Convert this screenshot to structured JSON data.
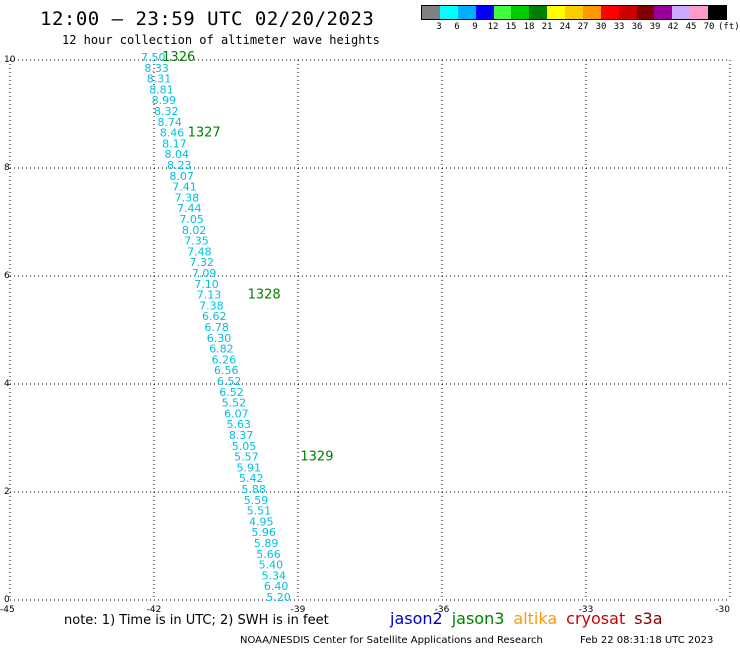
{
  "header": {
    "title": "12:00 – 23:59 UTC 02/20/2023",
    "subtitle": "12 hour collection of altimeter wave heights"
  },
  "legend": {
    "colors": [
      "#808080",
      "#00ffff",
      "#00b0ff",
      "#0000ff",
      "#40ff40",
      "#00cc00",
      "#008000",
      "#ffff00",
      "#ffcc00",
      "#ff9900",
      "#ff0000",
      "#cc0000",
      "#800000",
      "#990099",
      "#ccaaff",
      "#ff99cc",
      "#000000"
    ],
    "labels": [
      "3",
      "6",
      "9",
      "12",
      "15",
      "18",
      "21",
      "24",
      "27",
      "30",
      "33",
      "36",
      "39",
      "42",
      "45",
      "70",
      "(ft)"
    ]
  },
  "chart_data": {
    "type": "scatter",
    "xlim": [
      -45,
      -30
    ],
    "ylim": [
      0,
      10
    ],
    "x_ticks": [
      "-45",
      "-42",
      "-39",
      "-36",
      "-33",
      "-30"
    ],
    "y_ticks": [
      "0",
      "2",
      "4",
      "6",
      "8",
      "10"
    ],
    "grid": true,
    "text_color": "#00bfe0",
    "pass_color": "#008000",
    "points": [
      {
        "lon": -42.27,
        "lat": 10.0,
        "v": "7.50"
      },
      {
        "lon": -42.2,
        "lat": 9.8,
        "v": "8.33"
      },
      {
        "lon": -42.15,
        "lat": 9.6,
        "v": "8.31"
      },
      {
        "lon": -42.1,
        "lat": 9.4,
        "v": "8.81"
      },
      {
        "lon": -42.05,
        "lat": 9.2,
        "v": "8.99"
      },
      {
        "lon": -42.0,
        "lat": 9.0,
        "v": "8.32"
      },
      {
        "lon": -41.93,
        "lat": 8.8,
        "v": "8.74"
      },
      {
        "lon": -41.88,
        "lat": 8.6,
        "v": "8.46"
      },
      {
        "lon": -41.83,
        "lat": 8.4,
        "v": "8.17"
      },
      {
        "lon": -41.78,
        "lat": 8.2,
        "v": "8.04"
      },
      {
        "lon": -41.73,
        "lat": 8.0,
        "v": "8.23"
      },
      {
        "lon": -41.68,
        "lat": 7.8,
        "v": "8.07"
      },
      {
        "lon": -41.62,
        "lat": 7.6,
        "v": "7.41"
      },
      {
        "lon": -41.57,
        "lat": 7.4,
        "v": "7.38"
      },
      {
        "lon": -41.52,
        "lat": 7.2,
        "v": "7.44"
      },
      {
        "lon": -41.47,
        "lat": 7.0,
        "v": "7.05"
      },
      {
        "lon": -41.42,
        "lat": 6.8,
        "v": "8.02"
      },
      {
        "lon": -41.37,
        "lat": 6.6,
        "v": "7.35"
      },
      {
        "lon": -41.31,
        "lat": 6.4,
        "v": "7.48"
      },
      {
        "lon": -41.26,
        "lat": 6.2,
        "v": "7.32"
      },
      {
        "lon": -41.21,
        "lat": 6.0,
        "v": "7.09"
      },
      {
        "lon": -41.16,
        "lat": 5.8,
        "v": "7.10"
      },
      {
        "lon": -41.11,
        "lat": 5.6,
        "v": "7.13"
      },
      {
        "lon": -41.06,
        "lat": 5.4,
        "v": "7.38"
      },
      {
        "lon": -41.0,
        "lat": 5.2,
        "v": "6.62"
      },
      {
        "lon": -40.95,
        "lat": 5.0,
        "v": "6.78"
      },
      {
        "lon": -40.9,
        "lat": 4.8,
        "v": "6.30"
      },
      {
        "lon": -40.85,
        "lat": 4.6,
        "v": "6.82"
      },
      {
        "lon": -40.8,
        "lat": 4.4,
        "v": "6.26"
      },
      {
        "lon": -40.75,
        "lat": 4.2,
        "v": "6.56"
      },
      {
        "lon": -40.69,
        "lat": 4.0,
        "v": "6.52"
      },
      {
        "lon": -40.64,
        "lat": 3.8,
        "v": "6.52"
      },
      {
        "lon": -40.59,
        "lat": 3.6,
        "v": "5.52"
      },
      {
        "lon": -40.54,
        "lat": 3.4,
        "v": "6.07"
      },
      {
        "lon": -40.49,
        "lat": 3.2,
        "v": "5.63"
      },
      {
        "lon": -40.44,
        "lat": 3.0,
        "v": "8.37"
      },
      {
        "lon": -40.38,
        "lat": 2.8,
        "v": "5.05"
      },
      {
        "lon": -40.33,
        "lat": 2.6,
        "v": "5.57"
      },
      {
        "lon": -40.28,
        "lat": 2.4,
        "v": "5.91"
      },
      {
        "lon": -40.23,
        "lat": 2.2,
        "v": "5.42"
      },
      {
        "lon": -40.18,
        "lat": 2.0,
        "v": "5.88"
      },
      {
        "lon": -40.13,
        "lat": 1.8,
        "v": "5.59"
      },
      {
        "lon": -40.07,
        "lat": 1.6,
        "v": "5.51"
      },
      {
        "lon": -40.02,
        "lat": 1.4,
        "v": "4.95"
      },
      {
        "lon": -39.97,
        "lat": 1.2,
        "v": "5.96"
      },
      {
        "lon": -39.92,
        "lat": 1.0,
        "v": "5.89"
      },
      {
        "lon": -39.87,
        "lat": 0.8,
        "v": "5.66"
      },
      {
        "lon": -39.82,
        "lat": 0.6,
        "v": "5.40"
      },
      {
        "lon": -39.76,
        "lat": 0.4,
        "v": "5.34"
      },
      {
        "lon": -39.71,
        "lat": 0.2,
        "v": "6.40"
      },
      {
        "lon": -39.66,
        "lat": 0.0,
        "v": "5.20"
      }
    ],
    "passes": [
      {
        "lon": -41.83,
        "lat": 10.0,
        "label": "1326"
      },
      {
        "lon": -41.3,
        "lat": 8.6,
        "label": "1327"
      },
      {
        "lon": -40.05,
        "lat": 5.6,
        "label": "1328"
      },
      {
        "lon": -38.95,
        "lat": 2.6,
        "label": "1329"
      }
    ]
  },
  "footer": {
    "note": "note:  1) Time is in UTC; 2) SWH is in feet",
    "satellites": [
      {
        "name": "jason2",
        "color": "#0000cc"
      },
      {
        "name": "jason3",
        "color": "#008000"
      },
      {
        "name": "altika",
        "color": "#ff9900"
      },
      {
        "name": "cryosat",
        "color": "#cc0000"
      },
      {
        "name": "s3a",
        "color": "#800000"
      }
    ],
    "credit": "NOAA/NESDIS Center for Satellite Applications and Research",
    "timestamp": "Feb 22 08:31:18 UTC 2023"
  }
}
